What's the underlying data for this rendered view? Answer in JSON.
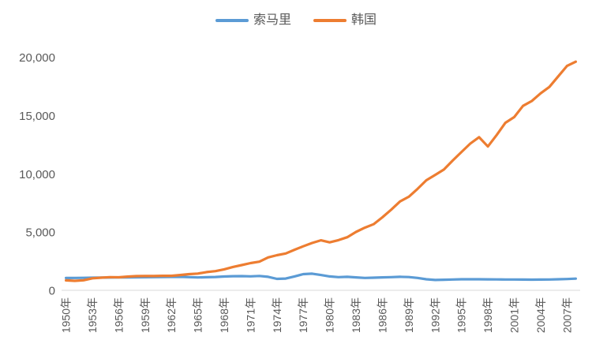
{
  "chart": {
    "background_color": "#ffffff",
    "axis_line_color": "#d9d9d9",
    "tick_label_color": "#595959",
    "legend_text_color": "#595959"
  },
  "chart_data": {
    "type": "line",
    "title": "",
    "xlabel": "",
    "ylabel": "",
    "grid": false,
    "legend_position": "top-center",
    "ylim": [
      0,
      20000
    ],
    "y_ticks": [
      0,
      5000,
      10000,
      15000,
      20000
    ],
    "y_tick_labels": [
      "0",
      "5,000",
      "10,000",
      "15,000",
      "20,000"
    ],
    "x": [
      1950,
      1951,
      1952,
      1953,
      1954,
      1955,
      1956,
      1957,
      1958,
      1959,
      1960,
      1961,
      1962,
      1963,
      1964,
      1965,
      1966,
      1967,
      1968,
      1969,
      1970,
      1971,
      1972,
      1973,
      1974,
      1975,
      1976,
      1977,
      1978,
      1979,
      1980,
      1981,
      1982,
      1983,
      1984,
      1985,
      1986,
      1987,
      1988,
      1989,
      1990,
      1991,
      1992,
      1993,
      1994,
      1995,
      1996,
      1997,
      1998,
      1999,
      2000,
      2001,
      2002,
      2003,
      2004,
      2005,
      2006,
      2007,
      2008
    ],
    "x_tick_labels": [
      "1950年",
      "1953年",
      "1956年",
      "1959年",
      "1962年",
      "1965年",
      "1968年",
      "1971年",
      "1974年",
      "1977年",
      "1980年",
      "1983年",
      "1986年",
      "1989年",
      "1992年",
      "1995年",
      "1998年",
      "2001年",
      "2004年",
      "2007年"
    ],
    "x_tick_step": 3,
    "series": [
      {
        "id": "somalia",
        "name": "索马里",
        "color": "#5B9BD5",
        "values": [
          1057,
          1065,
          1072,
          1080,
          1088,
          1095,
          1103,
          1110,
          1118,
          1125,
          1133,
          1140,
          1148,
          1155,
          1130,
          1105,
          1125,
          1145,
          1185,
          1210,
          1220,
          1200,
          1230,
          1160,
          980,
          1010,
          1190,
          1390,
          1430,
          1310,
          1190,
          1130,
          1160,
          1110,
          1060,
          1080,
          1110,
          1130,
          1160,
          1140,
          1060,
          950,
          890,
          910,
          930,
          945,
          950,
          945,
          940,
          935,
          930,
          925,
          920,
          915,
          920,
          930,
          945,
          965,
          1000
        ]
      },
      {
        "id": "korea",
        "name": "韩国",
        "color": "#ED7D31",
        "values": [
          854,
          811,
          857,
          1031,
          1081,
          1130,
          1120,
          1177,
          1215,
          1228,
          1226,
          1247,
          1245,
          1316,
          1390,
          1436,
          1566,
          1645,
          1801,
          2004,
          2167,
          2332,
          2456,
          2824,
          3015,
          3162,
          3476,
          3775,
          4064,
          4294,
          4114,
          4302,
          4557,
          5007,
          5375,
          5670,
          6263,
          6916,
          7621,
          8027,
          8704,
          9445,
          9893,
          10361,
          11131,
          11873,
          12587,
          13137,
          12337,
          13317,
          14375,
          14862,
          15822,
          16243,
          16897,
          17448,
          18356,
          19250,
          19614
        ]
      }
    ]
  }
}
